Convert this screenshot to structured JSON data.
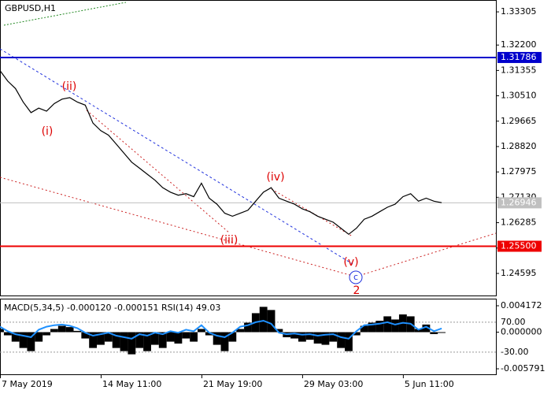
{
  "chart_data": {
    "type": "line",
    "title": "GBPUSD,H1",
    "x": [
      0,
      1,
      2,
      3,
      4,
      5,
      6,
      7,
      8,
      9,
      10,
      11,
      12,
      13,
      14,
      15,
      16,
      17,
      18,
      19,
      20,
      21,
      22,
      23,
      24,
      25,
      26,
      27,
      28,
      29,
      30,
      31,
      32,
      33,
      34,
      35,
      36,
      37,
      38,
      39,
      40,
      41,
      42,
      43,
      44,
      45,
      46,
      47,
      48,
      49,
      50,
      51,
      52,
      53,
      54,
      55,
      56,
      57
    ],
    "values": [
      1.3135,
      1.31,
      1.3075,
      1.303,
      1.2995,
      1.301,
      1.3,
      1.3025,
      1.304,
      1.3045,
      1.303,
      1.302,
      1.296,
      1.2935,
      1.292,
      1.289,
      1.286,
      1.283,
      1.281,
      1.279,
      1.277,
      1.2745,
      1.273,
      1.272,
      1.2725,
      1.2715,
      1.276,
      1.271,
      1.269,
      1.266,
      1.265,
      1.266,
      1.267,
      1.27,
      1.273,
      1.2745,
      1.271,
      1.27,
      1.269,
      1.2675,
      1.2665,
      1.265,
      1.264,
      1.263,
      1.261,
      1.259,
      1.261,
      1.264,
      1.265,
      1.2665,
      1.268,
      1.269,
      1.2715,
      1.2725,
      1.27,
      1.271,
      1.27,
      1.2695
    ],
    "color": "#000000",
    "xlim": [
      0,
      64
    ],
    "xticks": [
      {
        "value": 0,
        "label": "7 May 2019"
      },
      {
        "value": 13,
        "label": "14 May 11:00"
      },
      {
        "value": 26,
        "label": "21 May 19:00"
      },
      {
        "value": 39,
        "label": "29 May 03:00"
      },
      {
        "value": 52,
        "label": "5 Jun 11:00"
      }
    ],
    "ylim": [
      1.2386,
      1.337
    ],
    "yticks": [
      {
        "value": 1.33305,
        "label": "1.33305"
      },
      {
        "value": 1.322,
        "label": "1.32200"
      },
      {
        "value": 1.31355,
        "label": "1.31355"
      },
      {
        "value": 1.3051,
        "label": "1.30510"
      },
      {
        "value": 1.29665,
        "label": "1.29665"
      },
      {
        "value": 1.2882,
        "label": "1.28820"
      },
      {
        "value": 1.27975,
        "label": "1.27975"
      },
      {
        "value": 1.2713,
        "label": "1.27130"
      },
      {
        "value": 1.26285,
        "label": "1.26285"
      },
      {
        "value": 1.2544,
        "label": "1.25440"
      },
      {
        "value": 1.24595,
        "label": "1.24595"
      }
    ],
    "levels": [
      {
        "value": 1.31786,
        "label": "1.31786",
        "color": "#0000cc"
      },
      {
        "value": 1.255,
        "label": "1.25500",
        "color": "#ee0000"
      },
      {
        "value": 1.26946,
        "label": "1.26946",
        "color": "#c0c0c0"
      }
    ],
    "annotations": [
      "(i)",
      "(ii)",
      "(iii)",
      "(iv)",
      "(v)",
      "c",
      "2"
    ],
    "indicator": {
      "title": "MACD(5,34,5) -0.000120 -0.000151 RSI(14) 49.03",
      "macd": [
        0.0005,
        -0.0005,
        -0.0015,
        -0.0025,
        -0.003,
        -0.0015,
        -0.0005,
        0.0005,
        0.001,
        0.0008,
        0.0002,
        -0.001,
        -0.0025,
        -0.002,
        -0.0015,
        -0.0025,
        -0.003,
        -0.0035,
        -0.0025,
        -0.003,
        -0.002,
        -0.0025,
        -0.0015,
        -0.0018,
        -0.001,
        -0.0015,
        0.0005,
        -0.0005,
        -0.002,
        -0.003,
        -0.0015,
        0.0005,
        0.0015,
        0.003,
        0.004,
        0.0035,
        0.0005,
        -0.0008,
        -0.001,
        -0.0015,
        -0.0012,
        -0.0018,
        -0.002,
        -0.0015,
        -0.0025,
        -0.003,
        -0.0005,
        0.001,
        0.0015,
        0.0018,
        0.0025,
        0.002,
        0.0028,
        0.0025,
        0.0005,
        0.0012,
        -0.0003,
        -0.00012
      ],
      "macd_color": "#000000",
      "ylim": [
        -0.00666,
        0.00517
      ],
      "yticks": [
        {
          "value": 0.004172,
          "label": "0.004172"
        },
        {
          "value": 0,
          "label": "0.000000"
        },
        {
          "value": -0.005791,
          "label": "-0.005791"
        }
      ],
      "rsi": [
        55,
        40,
        30,
        25,
        20,
        45,
        55,
        60,
        62,
        58,
        50,
        35,
        25,
        30,
        35,
        25,
        20,
        15,
        30,
        25,
        35,
        30,
        40,
        35,
        45,
        40,
        60,
        35,
        25,
        20,
        35,
        55,
        60,
        70,
        75,
        65,
        35,
        30,
        32,
        28,
        30,
        25,
        28,
        30,
        20,
        15,
        40,
        60,
        62,
        65,
        70,
        62,
        68,
        65,
        45,
        55,
        40,
        49.03
      ],
      "rsi_color": "#1e90ff",
      "rsi_ylim": [
        -104,
        146
      ],
      "rsi_ticks": [
        {
          "value": 70,
          "label": "70.00"
        },
        {
          "value": -30,
          "label": "-30.00"
        }
      ]
    }
  }
}
